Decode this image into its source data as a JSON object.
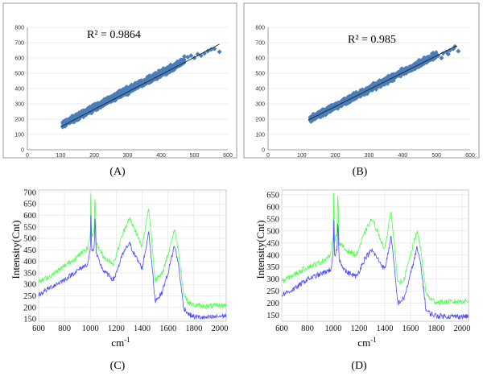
{
  "chart_data": [
    {
      "type": "scatter",
      "panel": "A",
      "caption": "(A)",
      "annotation": "R² = 0.9864",
      "xlim": [
        0,
        600
      ],
      "ylim": [
        0,
        800
      ],
      "xticks": [
        0,
        100,
        200,
        300,
        400,
        500,
        600
      ],
      "yticks": [
        0,
        100,
        200,
        300,
        400,
        500,
        600,
        700,
        800
      ],
      "trend": [
        [
          100,
          150
        ],
        [
          575,
          690
        ]
      ],
      "cloud": {
        "x_min": 105,
        "x_max": 470,
        "y_at_min": 165,
        "y_at_max": 580,
        "spread": 18
      },
      "outliers": [
        [
          470,
          610
        ],
        [
          480,
          605
        ],
        [
          490,
          615
        ],
        [
          500,
          600
        ],
        [
          510,
          625
        ],
        [
          520,
          615
        ],
        [
          530,
          630
        ],
        [
          540,
          645
        ],
        [
          550,
          655
        ],
        [
          560,
          660
        ],
        [
          575,
          640
        ]
      ],
      "color": "#4a7ebb"
    },
    {
      "type": "scatter",
      "panel": "B",
      "caption": "(B)",
      "annotation": "R² = 0.985",
      "xlim": [
        0,
        600
      ],
      "ylim": [
        0,
        800
      ],
      "xticks": [
        0,
        100,
        200,
        300,
        400,
        500,
        600
      ],
      "yticks": [
        0,
        100,
        200,
        300,
        400,
        500,
        600,
        700,
        800
      ],
      "trend": [
        [
          120,
          195
        ],
        [
          560,
          680
        ]
      ],
      "cloud": {
        "x_min": 125,
        "x_max": 500,
        "y_at_min": 200,
        "y_at_max": 620,
        "spread": 17
      },
      "outliers": [
        [
          505,
          615
        ],
        [
          515,
          600
        ],
        [
          520,
          630
        ],
        [
          530,
          640
        ],
        [
          535,
          625
        ],
        [
          540,
          650
        ],
        [
          550,
          660
        ],
        [
          555,
          675
        ],
        [
          565,
          645
        ]
      ],
      "color": "#4a7ebb"
    },
    {
      "type": "line",
      "panel": "C",
      "caption": "(C)",
      "xlabel": "cm",
      "xlabel_sup": "-1",
      "ylabel": "Intensity(Cnt)",
      "xlim": [
        600,
        2050
      ],
      "ylim": [
        140,
        710
      ],
      "xticks": [
        600,
        800,
        1000,
        1200,
        1400,
        1600,
        1800,
        2000
      ],
      "yticks": [
        150,
        200,
        250,
        300,
        350,
        400,
        450,
        500,
        550,
        600,
        650,
        700
      ],
      "series": [
        {
          "color": "#4dff4d",
          "points": [
            [
              600,
              310
            ],
            [
              700,
              340
            ],
            [
              800,
              380
            ],
            [
              900,
              420
            ],
            [
              980,
              460
            ],
            [
              1000,
              520
            ],
            [
              1004,
              700
            ],
            [
              1010,
              500
            ],
            [
              1030,
              540
            ],
            [
              1036,
              710
            ],
            [
              1045,
              480
            ],
            [
              1100,
              420
            ],
            [
              1180,
              390
            ],
            [
              1250,
              520
            ],
            [
              1300,
              590
            ],
            [
              1350,
              530
            ],
            [
              1400,
              460
            ],
            [
              1440,
              600
            ],
            [
              1450,
              630
            ],
            [
              1470,
              520
            ],
            [
              1500,
              320
            ],
            [
              1550,
              340
            ],
            [
              1600,
              430
            ],
            [
              1650,
              540
            ],
            [
              1680,
              450
            ],
            [
              1720,
              260
            ],
            [
              1760,
              220
            ],
            [
              1800,
              210
            ],
            [
              1900,
              205
            ],
            [
              2050,
              210
            ]
          ]
        },
        {
          "color": "#4d4dff",
          "points": [
            [
              600,
              255
            ],
            [
              700,
              290
            ],
            [
              800,
              320
            ],
            [
              900,
              360
            ],
            [
              980,
              390
            ],
            [
              1000,
              450
            ],
            [
              1004,
              600
            ],
            [
              1010,
              440
            ],
            [
              1030,
              460
            ],
            [
              1036,
              600
            ],
            [
              1045,
              430
            ],
            [
              1100,
              360
            ],
            [
              1180,
              320
            ],
            [
              1250,
              430
            ],
            [
              1300,
              480
            ],
            [
              1350,
              420
            ],
            [
              1400,
              370
            ],
            [
              1440,
              490
            ],
            [
              1450,
              540
            ],
            [
              1470,
              420
            ],
            [
              1500,
              230
            ],
            [
              1550,
              260
            ],
            [
              1600,
              350
            ],
            [
              1650,
              470
            ],
            [
              1680,
              390
            ],
            [
              1720,
              200
            ],
            [
              1760,
              170
            ],
            [
              1800,
              160
            ],
            [
              1900,
              155
            ],
            [
              2050,
              165
            ]
          ]
        }
      ]
    },
    {
      "type": "line",
      "panel": "D",
      "caption": "(D)",
      "xlabel": "cm",
      "xlabel_sup": "-1",
      "ylabel": "Intensity(Cnt)",
      "xlim": [
        600,
        2050
      ],
      "ylim": [
        125,
        670
      ],
      "xticks": [
        600,
        800,
        1000,
        1200,
        1400,
        1600,
        1800,
        2000
      ],
      "yticks": [
        150,
        200,
        250,
        300,
        350,
        400,
        450,
        500,
        550,
        600,
        650
      ],
      "series": [
        {
          "color": "#4dff4d",
          "points": [
            [
              600,
              290
            ],
            [
              700,
              320
            ],
            [
              800,
              350
            ],
            [
              900,
              370
            ],
            [
              980,
              400
            ],
            [
              1000,
              470
            ],
            [
              1004,
              650
            ],
            [
              1010,
              460
            ],
            [
              1030,
              500
            ],
            [
              1036,
              665
            ],
            [
              1045,
              450
            ],
            [
              1100,
              420
            ],
            [
              1180,
              400
            ],
            [
              1250,
              500
            ],
            [
              1300,
              550
            ],
            [
              1350,
              490
            ],
            [
              1400,
              420
            ],
            [
              1440,
              560
            ],
            [
              1450,
              580
            ],
            [
              1470,
              470
            ],
            [
              1500,
              280
            ],
            [
              1550,
              300
            ],
            [
              1600,
              400
            ],
            [
              1650,
              500
            ],
            [
              1680,
              420
            ],
            [
              1720,
              240
            ],
            [
              1760,
              215
            ],
            [
              1800,
              205
            ],
            [
              1900,
              205
            ],
            [
              2050,
              210
            ]
          ]
        },
        {
          "color": "#4d4dff",
          "points": [
            [
              600,
              235
            ],
            [
              700,
              260
            ],
            [
              800,
              300
            ],
            [
              900,
              320
            ],
            [
              980,
              340
            ],
            [
              1000,
              400
            ],
            [
              1004,
              540
            ],
            [
              1010,
              390
            ],
            [
              1030,
              420
            ],
            [
              1036,
              560
            ],
            [
              1045,
              380
            ],
            [
              1100,
              330
            ],
            [
              1180,
              310
            ],
            [
              1250,
              390
            ],
            [
              1300,
              420
            ],
            [
              1350,
              380
            ],
            [
              1400,
              340
            ],
            [
              1440,
              450
            ],
            [
              1450,
              480
            ],
            [
              1470,
              370
            ],
            [
              1500,
              200
            ],
            [
              1550,
              220
            ],
            [
              1600,
              320
            ],
            [
              1650,
              430
            ],
            [
              1680,
              360
            ],
            [
              1720,
              170
            ],
            [
              1760,
              155
            ],
            [
              1800,
              148
            ],
            [
              1900,
              145
            ],
            [
              2050,
              145
            ]
          ]
        }
      ]
    }
  ]
}
